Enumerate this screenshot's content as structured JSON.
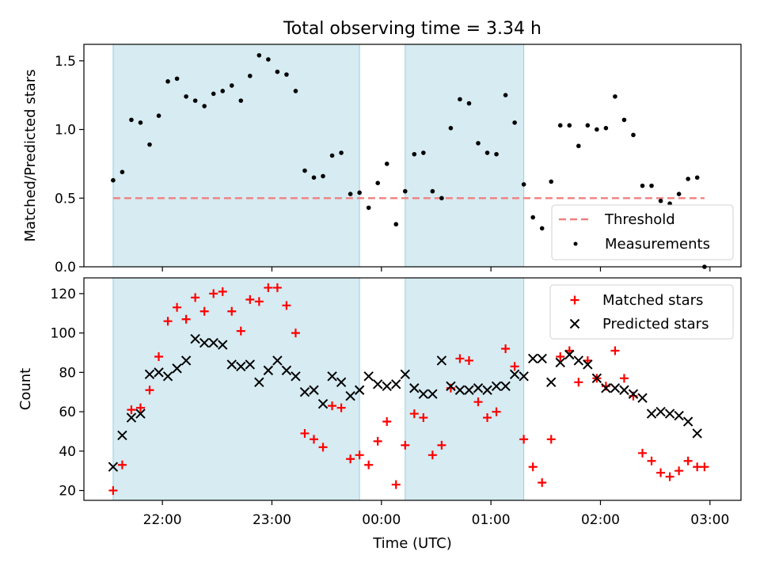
{
  "title": "Total observing time = 3.34 h",
  "chart_data": [
    {
      "type": "scatter",
      "panel": "top",
      "ylabel": "Matched/Predicted stars",
      "ylim": [
        0,
        1.62
      ],
      "yticks": [
        0.0,
        0.5,
        1.0,
        1.5
      ],
      "ytick_labels": [
        "0.0",
        "0.5",
        "1.0",
        "1.5"
      ],
      "shaded_intervals": [
        [
          "21:33",
          "23:48"
        ],
        [
          "00:13",
          "01:18"
        ]
      ],
      "threshold": {
        "name": "Threshold",
        "value": 0.5,
        "x_range": [
          "21:33",
          "02:57"
        ],
        "color": "#f08080",
        "style": "dashed"
      },
      "legend": {
        "placement": "lower-right",
        "entries": [
          "Threshold",
          "Measurements"
        ]
      },
      "series": [
        {
          "name": "Measurements",
          "marker": "dot",
          "color": "#000000",
          "x": [
            "21:33",
            "21:38",
            "21:43",
            "21:48",
            "21:53",
            "21:58",
            "22:03",
            "22:08",
            "22:13",
            "22:18",
            "22:23",
            "22:28",
            "22:33",
            "22:38",
            "22:43",
            "22:48",
            "22:53",
            "22:58",
            "23:03",
            "23:08",
            "23:13",
            "23:18",
            "23:23",
            "23:28",
            "23:33",
            "23:38",
            "23:43",
            "23:48",
            "23:53",
            "23:58",
            "00:03",
            "00:08",
            "00:13",
            "00:18",
            "00:23",
            "00:28",
            "00:33",
            "00:38",
            "00:43",
            "00:48",
            "00:53",
            "00:58",
            "01:03",
            "01:08",
            "01:13",
            "01:18",
            "01:23",
            "01:28",
            "01:33",
            "01:38",
            "01:43",
            "01:48",
            "01:53",
            "01:58",
            "02:03",
            "02:08",
            "02:13",
            "02:18",
            "02:23",
            "02:28",
            "02:33",
            "02:38",
            "02:43",
            "02:48",
            "02:53",
            "02:57"
          ],
          "y": [
            0.63,
            0.69,
            1.07,
            1.05,
            0.89,
            1.1,
            1.35,
            1.37,
            1.24,
            1.21,
            1.17,
            1.26,
            1.28,
            1.32,
            1.21,
            1.39,
            1.54,
            1.51,
            1.42,
            1.4,
            1.28,
            0.7,
            0.65,
            0.66,
            0.81,
            0.83,
            0.53,
            0.54,
            0.43,
            0.61,
            0.75,
            0.31,
            0.55,
            0.82,
            0.83,
            0.55,
            0.5,
            1.01,
            1.22,
            1.19,
            0.9,
            0.83,
            0.82,
            1.25,
            1.05,
            0.6,
            0.36,
            0.28,
            0.62,
            1.03,
            1.03,
            0.88,
            1.03,
            1.0,
            1.01,
            1.24,
            1.07,
            0.96,
            0.59,
            0.59,
            0.48,
            0.46,
            0.53,
            0.64,
            0.65,
            0.0
          ]
        }
      ]
    },
    {
      "type": "scatter",
      "panel": "bottom",
      "xlabel": "Time (UTC)",
      "ylabel": "Count",
      "ylim": [
        15,
        128
      ],
      "yticks": [
        20,
        40,
        60,
        80,
        100,
        120
      ],
      "ytick_labels": [
        "20",
        "40",
        "60",
        "80",
        "100",
        "120"
      ],
      "xticks": [
        "22:00",
        "23:00",
        "00:00",
        "01:00",
        "02:00",
        "03:00"
      ],
      "xlim": [
        "21:17",
        "03:17"
      ],
      "shaded_intervals": [
        [
          "21:33",
          "23:48"
        ],
        [
          "00:13",
          "01:18"
        ]
      ],
      "legend": {
        "placement": "top-right",
        "entries": [
          "Matched stars",
          "Predicted stars"
        ]
      },
      "series": [
        {
          "name": "Matched stars",
          "marker": "plus",
          "color": "#ff0000",
          "x": [
            "21:33",
            "21:38",
            "21:43",
            "21:48",
            "21:53",
            "21:58",
            "22:03",
            "22:08",
            "22:13",
            "22:18",
            "22:23",
            "22:28",
            "22:33",
            "22:38",
            "22:43",
            "22:48",
            "22:53",
            "22:58",
            "23:03",
            "23:08",
            "23:13",
            "23:18",
            "23:23",
            "23:28",
            "23:33",
            "23:38",
            "23:43",
            "23:48",
            "23:53",
            "23:58",
            "00:03",
            "00:08",
            "00:13",
            "00:18",
            "00:23",
            "00:28",
            "00:33",
            "00:38",
            "00:43",
            "00:48",
            "00:53",
            "00:58",
            "01:03",
            "01:08",
            "01:13",
            "01:18",
            "01:23",
            "01:28",
            "01:33",
            "01:38",
            "01:43",
            "01:48",
            "01:53",
            "01:58",
            "02:03",
            "02:08",
            "02:13",
            "02:18",
            "02:23",
            "02:28",
            "02:33",
            "02:38",
            "02:43",
            "02:48",
            "02:53",
            "02:57"
          ],
          "y": [
            20,
            33,
            61,
            62,
            71,
            88,
            106,
            113,
            107,
            118,
            111,
            120,
            121,
            111,
            101,
            117,
            116,
            123,
            123,
            114,
            100,
            49,
            46,
            42,
            63,
            62,
            36,
            38,
            33,
            45,
            55,
            23,
            43,
            59,
            57,
            38,
            43,
            72,
            87,
            86,
            65,
            57,
            60,
            92,
            83,
            46,
            32,
            24,
            46,
            88,
            91,
            75,
            86,
            77,
            73,
            91,
            77,
            68,
            39,
            35,
            29,
            27,
            30,
            35,
            32,
            32
          ]
        },
        {
          "name": "Predicted stars",
          "marker": "x",
          "color": "#000000",
          "x": [
            "21:33",
            "21:38",
            "21:43",
            "21:48",
            "21:53",
            "21:58",
            "22:03",
            "22:08",
            "22:13",
            "22:18",
            "22:23",
            "22:28",
            "22:33",
            "22:38",
            "22:43",
            "22:48",
            "22:53",
            "22:58",
            "23:03",
            "23:08",
            "23:13",
            "23:18",
            "23:23",
            "23:28",
            "23:33",
            "23:38",
            "23:43",
            "23:48",
            "23:53",
            "23:58",
            "00:03",
            "00:08",
            "00:13",
            "00:18",
            "00:23",
            "00:28",
            "00:33",
            "00:38",
            "00:43",
            "00:48",
            "00:53",
            "00:58",
            "01:03",
            "01:08",
            "01:13",
            "01:18",
            "01:23",
            "01:28",
            "01:33",
            "01:38",
            "01:43",
            "01:48",
            "01:53",
            "01:58",
            "02:03",
            "02:08",
            "02:13",
            "02:18",
            "02:23",
            "02:28",
            "02:33",
            "02:38",
            "02:43",
            "02:48",
            "02:53"
          ],
          "y": [
            32,
            48,
            57,
            59,
            79,
            80,
            78,
            82,
            86,
            97,
            95,
            95,
            94,
            84,
            83,
            84,
            75,
            81,
            86,
            81,
            78,
            70,
            71,
            64,
            78,
            75,
            68,
            71,
            78,
            74,
            73,
            74,
            79,
            72,
            69,
            69,
            86,
            73,
            71,
            71,
            72,
            71,
            73,
            73,
            79,
            78,
            87,
            87,
            75,
            85,
            89,
            86,
            84,
            77,
            72,
            72,
            71,
            69,
            67,
            59,
            60,
            59,
            58,
            55,
            49
          ]
        }
      ]
    }
  ]
}
